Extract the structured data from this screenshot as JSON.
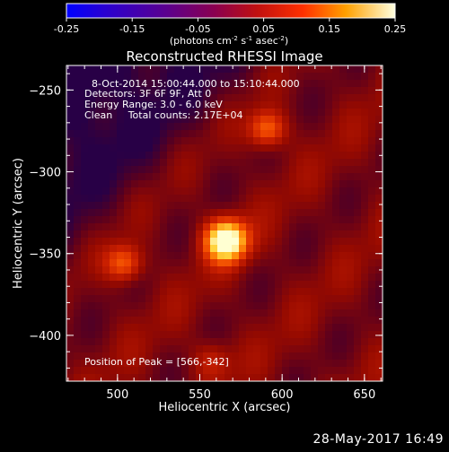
{
  "chart_data": {
    "type": "heatmap",
    "title": "Reconstructed RHESSI Image",
    "xlabel": "Heliocentric X (arcsec)",
    "ylabel": "Heliocentric Y (arcsec)",
    "xlim": [
      469,
      661
    ],
    "ylim": [
      -428,
      -235
    ],
    "x_ticks": [
      500,
      550,
      600,
      650
    ],
    "y_ticks": [
      -250,
      -300,
      -350,
      -400
    ],
    "colorbar": {
      "ticks": [
        -0.25,
        -0.15,
        -0.05,
        0.05,
        0.15,
        0.25
      ],
      "range": [
        -0.25,
        0.25
      ],
      "label": "(photons cm",
      "label_exp1": "-2",
      "label_mid": " s",
      "label_exp2": "-1",
      "label_mid2": " asec",
      "label_exp3": "-2",
      "label_end": ")"
    },
    "annotations": {
      "line1": "8-Oct-2014 15:00:44.000 to 15:10:44.000",
      "line2": "Detectors: 3F 6F 9F, Att 0",
      "line3": "Energy Range: 3.0 - 6.0 keV",
      "line4": "Clean     Total counts: 2.17E+04",
      "peak_text": "Position of Peak = [566,-342]"
    },
    "sources": [
      {
        "x": 566,
        "y": -342,
        "intensity": 0.25
      },
      {
        "x": 591,
        "y": -274,
        "intensity": 0.13
      },
      {
        "x": 504,
        "y": -356,
        "intensity": 0.12
      },
      {
        "x": 557,
        "y": -415,
        "intensity": 0.06
      }
    ],
    "background_level": 0.06
  },
  "timestamp": "28-May-2017 16:49"
}
